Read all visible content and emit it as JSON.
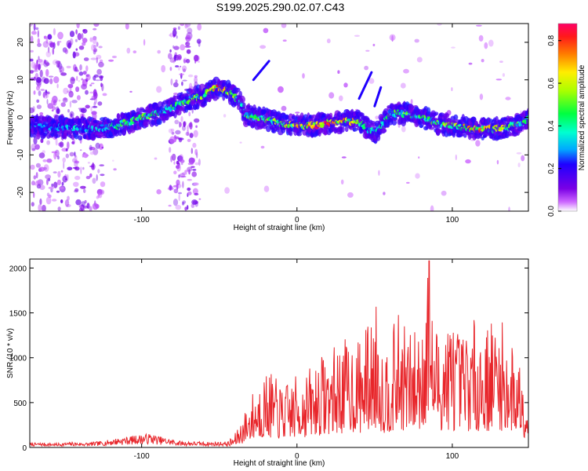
{
  "title": "S199.2025.290.02.07.C43",
  "chart_data": [
    {
      "type": "heatmap",
      "name": "spectrogram",
      "xlabel": "Height of straight line (km)",
      "ylabel": "Frequency (Hz)",
      "xlim": [
        -172,
        149
      ],
      "ylim": [
        -25,
        25
      ],
      "x_ticks": [
        -100,
        0,
        100
      ],
      "y_ticks": [
        -20,
        -10,
        0,
        10,
        20
      ],
      "colorbar": {
        "label": "Normalized spectral amplitude",
        "range": [
          0.0,
          0.88
        ],
        "ticks": [
          "0.0",
          "0.2",
          "0.4",
          "0.6",
          "0.8"
        ]
      },
      "ridge": {
        "x": [
          -172,
          -160,
          -150,
          -140,
          -130,
          -120,
          -110,
          -100,
          -90,
          -80,
          -70,
          -60,
          -55,
          -50,
          -45,
          -40,
          -37,
          -35,
          -33,
          -30,
          -20,
          -10,
          0,
          10,
          20,
          30,
          40,
          45,
          50,
          55,
          60,
          70,
          80,
          90,
          100,
          110,
          120,
          130,
          140,
          149
        ],
        "freq_hz": [
          -2.5,
          -2.6,
          -2.7,
          -3.0,
          -3.0,
          -2.6,
          -1.5,
          -0.2,
          1.0,
          2.6,
          4.5,
          6.0,
          7.2,
          8.0,
          7.0,
          5.5,
          4.5,
          2.5,
          0.5,
          0.3,
          -0.5,
          -1.8,
          -2.0,
          -2.2,
          -1.5,
          -1.0,
          -1.0,
          -3.0,
          -4.0,
          -2.0,
          1.0,
          1.0,
          0.0,
          -1.5,
          -2.0,
          -2.8,
          -3.2,
          -3.0,
          -2.0,
          -0.5
        ],
        "amplitude": [
          0.25,
          0.3,
          0.3,
          0.35,
          0.35,
          0.4,
          0.45,
          0.5,
          0.45,
          0.45,
          0.5,
          0.55,
          0.7,
          0.75,
          0.6,
          0.5,
          0.45,
          0.35,
          0.45,
          0.5,
          0.55,
          0.6,
          0.65,
          0.75,
          0.85,
          0.7,
          0.6,
          0.4,
          0.35,
          0.4,
          0.45,
          0.5,
          0.45,
          0.5,
          0.6,
          0.7,
          0.75,
          0.6,
          0.5,
          0.4
        ]
      }
    },
    {
      "type": "line",
      "name": "snr",
      "xlabel": "Height of straight line (km)",
      "ylabel": "SNR (10 * v/v)",
      "xlim": [
        -172,
        149
      ],
      "ylim": [
        0,
        2100
      ],
      "x_ticks": [
        -100,
        0,
        100
      ],
      "y_ticks": [
        0,
        500,
        1000,
        1500,
        2000
      ],
      "color": "#e8252a",
      "x": [
        -172,
        -165,
        -155,
        -145,
        -135,
        -125,
        -115,
        -105,
        -95,
        -85,
        -75,
        -65,
        -55,
        -45,
        -40,
        -35,
        -30,
        -25,
        -20,
        -15,
        -10,
        -5,
        0,
        5,
        10,
        15,
        20,
        25,
        30,
        35,
        40,
        45,
        50,
        52,
        55,
        60,
        65,
        70,
        75,
        80,
        84,
        85,
        86,
        90,
        95,
        100,
        105,
        110,
        115,
        120,
        125,
        130,
        135,
        140,
        145,
        149
      ],
      "y": [
        40,
        45,
        40,
        50,
        45,
        60,
        90,
        110,
        130,
        90,
        60,
        55,
        50,
        55,
        130,
        300,
        500,
        650,
        750,
        700,
        600,
        650,
        700,
        750,
        800,
        900,
        950,
        1000,
        1050,
        1100,
        1050,
        1200,
        1350,
        1500,
        1000,
        1100,
        1300,
        1200,
        1100,
        1350,
        1700,
        2080,
        1400,
        1200,
        1250,
        1300,
        1100,
        1200,
        1250,
        1150,
        1250,
        1300,
        1100,
        1000,
        900,
        500
      ]
    }
  ]
}
